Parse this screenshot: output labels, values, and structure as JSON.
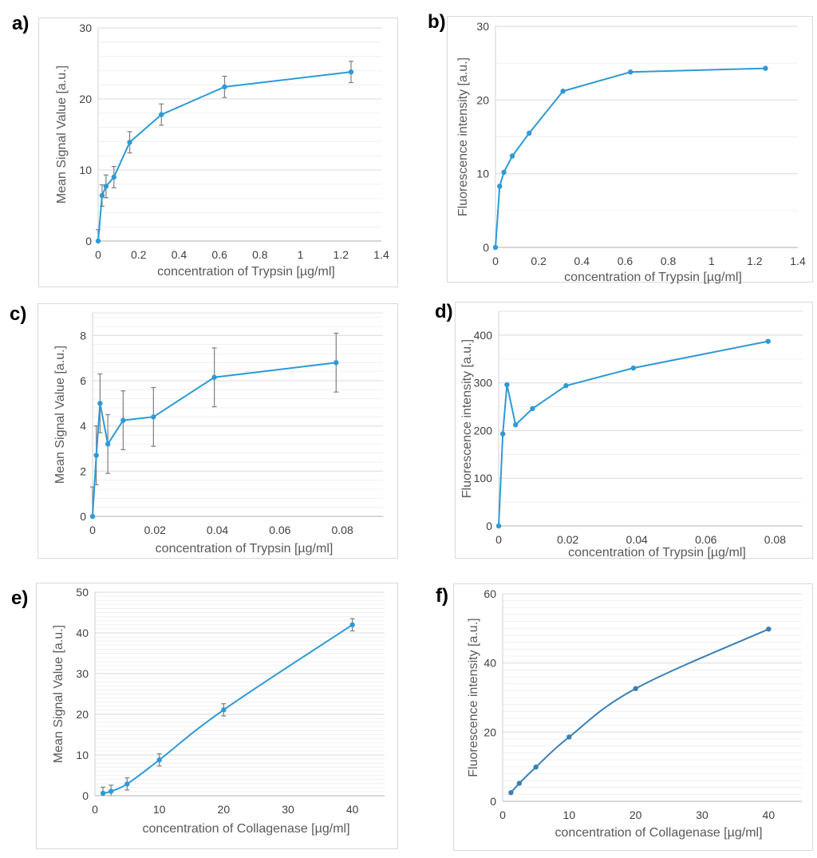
{
  "figure": {
    "line_color": "#2e9ad6",
    "line_color_f": "#3a7fb5",
    "errorbar_color": "#7f7f7f",
    "grid_major_color": "#e0e0e0",
    "grid_minor_color": "#f0f0f0"
  },
  "chart_data": [
    {
      "id": "a",
      "panel_label": "a)",
      "type": "line",
      "title": "",
      "xlabel": "concentration of Trypsin  [µg/ml]",
      "ylabel": "Mean Signal Value [a.u.]",
      "xlim": [
        0,
        1.4
      ],
      "ylim": [
        0,
        30
      ],
      "xticks": [
        0,
        0.2,
        0.4,
        0.6,
        0.8,
        1,
        1.2,
        1.4
      ],
      "xtick_labels": [
        "0",
        "0.2",
        "0.4",
        "0.6",
        "0.8",
        "1",
        "1.2",
        "1.4"
      ],
      "yticks": [
        0,
        10,
        20,
        30
      ],
      "ytick_labels": [
        "0",
        "10",
        "20",
        "30"
      ],
      "grid": true,
      "minor_grid_step": 2,
      "smooth": false,
      "series": [
        {
          "name": "Mean Signal Value",
          "x": [
            0,
            0.0195,
            0.039,
            0.078,
            0.156,
            0.3125,
            0.625,
            1.25
          ],
          "y": [
            0,
            6.4,
            7.7,
            9.0,
            13.9,
            17.8,
            21.7,
            23.8
          ],
          "error": [
            1.6,
            1.5,
            1.6,
            1.5,
            1.5,
            1.5,
            1.5,
            1.5
          ]
        }
      ]
    },
    {
      "id": "b",
      "panel_label": "b)",
      "type": "line",
      "title": "",
      "xlabel": "concentration of Trypsin  [µg/ml]",
      "ylabel": "Fluorescence intensity  [a.u.]",
      "xlim": [
        0,
        1.4
      ],
      "ylim": [
        0,
        30
      ],
      "xticks": [
        0,
        0.2,
        0.4,
        0.6,
        0.8,
        1,
        1.2,
        1.4
      ],
      "xtick_labels": [
        "0",
        "0.2",
        "0.4",
        "0.6",
        "0.8",
        "1",
        "1.2",
        "1.4"
      ],
      "yticks": [
        0,
        10,
        20,
        30
      ],
      "ytick_labels": [
        "0",
        "10",
        "20",
        "30"
      ],
      "grid": true,
      "minor_grid_step": 5,
      "smooth": false,
      "series": [
        {
          "name": "Fluorescence intensity",
          "x": [
            0,
            0.0195,
            0.039,
            0.078,
            0.156,
            0.3125,
            0.625,
            1.25
          ],
          "y": [
            0,
            8.3,
            10.2,
            12.4,
            15.5,
            21.2,
            23.8,
            24.3
          ],
          "error": null
        }
      ]
    },
    {
      "id": "c",
      "panel_label": "c)",
      "type": "line",
      "title": "",
      "xlabel": "concentration of Trypsin  [µg/ml]",
      "ylabel": "Mean Signal Value [a.u.]",
      "xlim": [
        0,
        0.093
      ],
      "ylim": [
        0,
        9
      ],
      "xticks": [
        0,
        0.02,
        0.04,
        0.06,
        0.08
      ],
      "xtick_labels": [
        "0",
        "0.02",
        "0.04",
        "0.06",
        "0.08"
      ],
      "yticks": [
        0,
        2,
        4,
        6,
        8
      ],
      "ytick_labels": [
        "0",
        "2",
        "4",
        "6",
        "8"
      ],
      "grid": true,
      "minor_grid_step": 0.4,
      "smooth": false,
      "series": [
        {
          "name": "Mean Signal Value",
          "x": [
            0,
            0.0012,
            0.0024,
            0.0049,
            0.0098,
            0.0195,
            0.039,
            0.078
          ],
          "y": [
            0,
            2.7,
            5.0,
            3.2,
            4.25,
            4.4,
            6.15,
            6.8
          ],
          "error": [
            1.3,
            1.3,
            1.3,
            1.3,
            1.3,
            1.3,
            1.3,
            1.3
          ]
        }
      ]
    },
    {
      "id": "d",
      "panel_label": "d)",
      "type": "line",
      "title": "",
      "xlabel": "concentration of Trypsin  [µg/ml]",
      "ylabel": "Fluorescence intensity  [a.u.]",
      "xlim": [
        0,
        0.088
      ],
      "ylim": [
        0,
        450
      ],
      "xticks": [
        0,
        0.02,
        0.04,
        0.06,
        0.08
      ],
      "xtick_labels": [
        "0",
        "0.02",
        "0.04",
        "0.06",
        "0.08"
      ],
      "yticks": [
        0,
        100,
        200,
        300,
        400
      ],
      "ytick_labels": [
        "0",
        "100",
        "200",
        "300",
        "400"
      ],
      "grid": true,
      "minor_grid_step": 50,
      "smooth": false,
      "series": [
        {
          "name": "Fluorescence intensity",
          "x": [
            0,
            0.0012,
            0.0024,
            0.0049,
            0.0098,
            0.0195,
            0.039,
            0.078
          ],
          "y": [
            0,
            193,
            296,
            212,
            246,
            294,
            331,
            387
          ],
          "error": null
        }
      ]
    },
    {
      "id": "e",
      "panel_label": "e)",
      "type": "line",
      "title": "",
      "xlabel": "concentration of Collagenase   [µg/ml]",
      "ylabel": "Mean Signal Value [a.u.]",
      "xlim": [
        0,
        45
      ],
      "ylim": [
        0,
        50
      ],
      "xticks": [
        0,
        10,
        20,
        30,
        40
      ],
      "xtick_labels": [
        "0",
        "10",
        "20",
        "30",
        "40"
      ],
      "yticks": [
        0,
        10,
        20,
        30,
        40,
        50
      ],
      "ytick_labels": [
        "0",
        "10",
        "20",
        "30",
        "40",
        "50"
      ],
      "grid": true,
      "minor_grid_step": 1,
      "smooth": true,
      "series": [
        {
          "name": "Mean Signal Value",
          "x": [
            1.25,
            2.5,
            5,
            10,
            20,
            40
          ],
          "y": [
            0.6,
            1.1,
            2.9,
            8.8,
            21.1,
            42.0
          ],
          "error": [
            1.5,
            1.5,
            1.5,
            1.5,
            1.5,
            1.5
          ]
        }
      ]
    },
    {
      "id": "f",
      "panel_label": "f)",
      "type": "line",
      "title": "",
      "xlabel": "concentration of Collagenase   [µg/ml]",
      "ylabel": "Fluorescence intensity  [a.u.]",
      "xlim": [
        0,
        45
      ],
      "ylim": [
        0,
        60
      ],
      "xticks": [
        0,
        10,
        20,
        30,
        40
      ],
      "xtick_labels": [
        "0",
        "10",
        "20",
        "30",
        "40"
      ],
      "yticks": [
        0,
        20,
        40,
        60
      ],
      "ytick_labels": [
        "0",
        "20",
        "40",
        "60"
      ],
      "grid": true,
      "minor_grid_step": 2,
      "smooth": true,
      "series": [
        {
          "name": "Fluorescence intensity",
          "x": [
            1.25,
            2.5,
            5,
            10,
            20,
            40
          ],
          "y": [
            2.5,
            5.2,
            9.9,
            18.6,
            32.6,
            49.8
          ],
          "error": null
        }
      ]
    }
  ]
}
